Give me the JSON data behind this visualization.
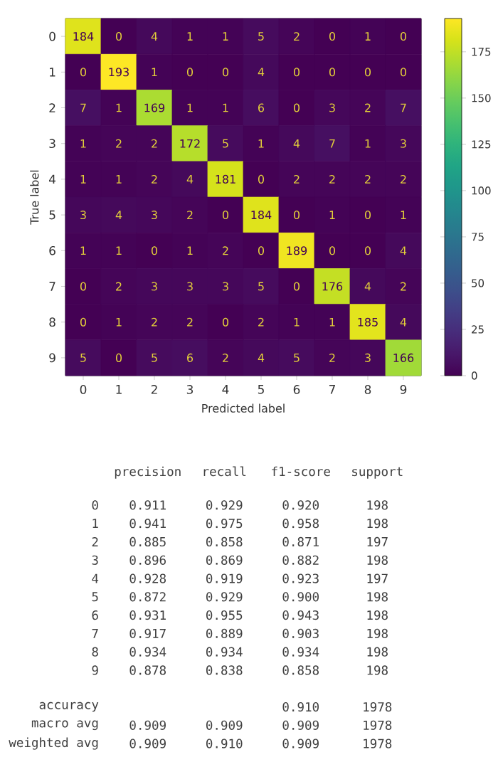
{
  "chart_data": [
    {
      "type": "heatmap",
      "xlabel": "Predicted label",
      "ylabel": "True label",
      "categories": [
        "0",
        "1",
        "2",
        "3",
        "4",
        "5",
        "6",
        "7",
        "8",
        "9"
      ],
      "y_categories": [
        "0",
        "1",
        "2",
        "3",
        "4",
        "5",
        "6",
        "7",
        "8",
        "9"
      ],
      "cells": [
        [
          184,
          0,
          4,
          1,
          1,
          5,
          2,
          0,
          1,
          0
        ],
        [
          0,
          193,
          1,
          0,
          0,
          4,
          0,
          0,
          0,
          0
        ],
        [
          7,
          1,
          169,
          1,
          1,
          6,
          0,
          3,
          2,
          7
        ],
        [
          1,
          2,
          2,
          172,
          5,
          1,
          4,
          7,
          1,
          3
        ],
        [
          1,
          1,
          2,
          4,
          181,
          0,
          2,
          2,
          2,
          2
        ],
        [
          3,
          4,
          3,
          2,
          0,
          184,
          0,
          1,
          0,
          1
        ],
        [
          1,
          1,
          0,
          1,
          2,
          0,
          189,
          0,
          0,
          4
        ],
        [
          0,
          2,
          3,
          3,
          3,
          5,
          0,
          176,
          4,
          2
        ],
        [
          0,
          1,
          2,
          2,
          0,
          2,
          1,
          1,
          185,
          4
        ],
        [
          5,
          0,
          5,
          6,
          2,
          4,
          5,
          2,
          3,
          166
        ]
      ],
      "clim": [
        0,
        193
      ],
      "cticks": [
        0,
        25,
        50,
        75,
        100,
        125,
        150,
        175
      ],
      "data_labels": true
    },
    {
      "type": "heatmap",
      "categories": [
        "precision",
        "recall",
        "f1-score",
        "support"
      ],
      "y_categories": [
        "0",
        "1",
        "2",
        "3",
        "4",
        "5",
        "6",
        "7",
        "8",
        "9",
        "accuracy",
        "macro avg",
        "weighted avg"
      ],
      "cells": [
        [
          0.911,
          0.929,
          0.92,
          198
        ],
        [
          0.941,
          0.975,
          0.958,
          198
        ],
        [
          0.885,
          0.858,
          0.871,
          197
        ],
        [
          0.896,
          0.869,
          0.882,
          198
        ],
        [
          0.928,
          0.919,
          0.923,
          197
        ],
        [
          0.872,
          0.929,
          0.9,
          198
        ],
        [
          0.931,
          0.955,
          0.943,
          198
        ],
        [
          0.917,
          0.889,
          0.903,
          198
        ],
        [
          0.934,
          0.934,
          0.934,
          198
        ],
        [
          0.878,
          0.838,
          0.858,
          198
        ],
        [
          null,
          null,
          0.91,
          1978
        ],
        [
          0.909,
          0.909,
          0.909,
          1978
        ],
        [
          0.909,
          0.91,
          0.909,
          1978
        ]
      ],
      "cell_labels": [
        [
          "0.911",
          "0.929",
          "0.920",
          "198"
        ],
        [
          "0.941",
          "0.975",
          "0.958",
          "198"
        ],
        [
          "0.885",
          "0.858",
          "0.871",
          "197"
        ],
        [
          "0.896",
          "0.869",
          "0.882",
          "198"
        ],
        [
          "0.928",
          "0.919",
          "0.923",
          "197"
        ],
        [
          "0.872",
          "0.929",
          "0.900",
          "198"
        ],
        [
          "0.931",
          "0.955",
          "0.943",
          "198"
        ],
        [
          "0.917",
          "0.889",
          "0.903",
          "198"
        ],
        [
          "0.934",
          "0.934",
          "0.934",
          "198"
        ],
        [
          "0.878",
          "0.838",
          "0.858",
          "198"
        ],
        [
          null,
          null,
          "0.910",
          "1978"
        ],
        [
          "0.909",
          "0.909",
          "0.909",
          "1978"
        ],
        [
          "0.909",
          "0.910",
          "0.909",
          "1978"
        ]
      ]
    }
  ]
}
